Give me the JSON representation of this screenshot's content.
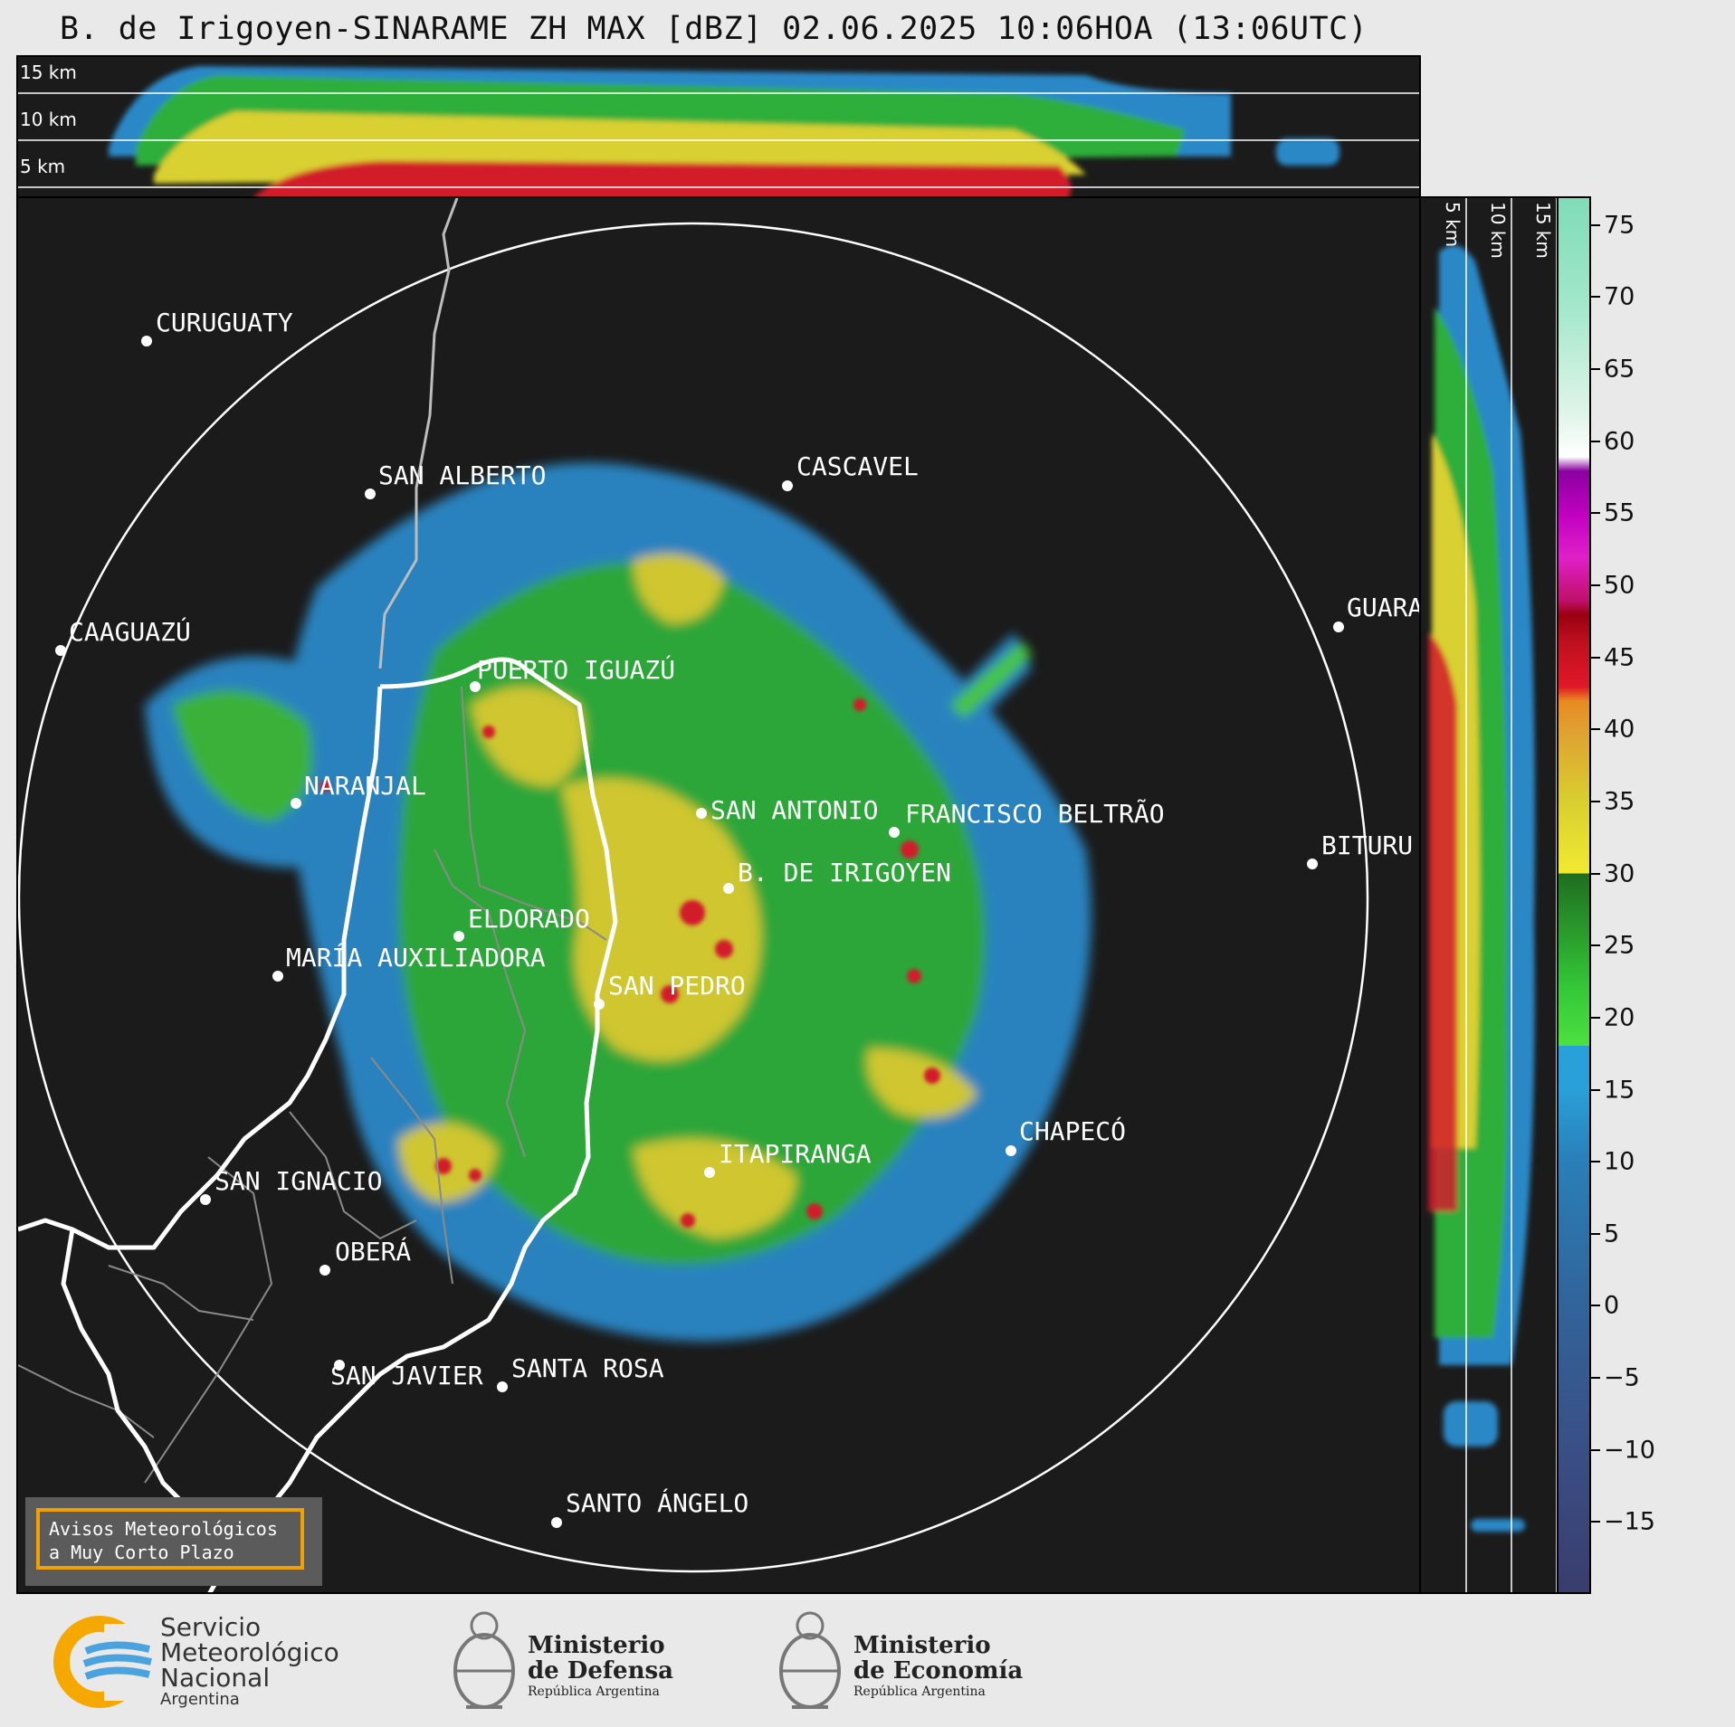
{
  "title": "B. de Irigoyen-SINARAME ZH MAX [dBZ] 02.06.2025 10:06HOA (13:06UTC)",
  "top_panel": {
    "km_labels": [
      "15 km",
      "10 km",
      "5 km"
    ]
  },
  "side_panel": {
    "km_labels": [
      "5 km",
      "10 km",
      "15 km"
    ]
  },
  "colorbar": {
    "ticks": [
      "75",
      "70",
      "65",
      "60",
      "55",
      "50",
      "45",
      "40",
      "35",
      "30",
      "25",
      "20",
      "15",
      "10",
      "5",
      "0",
      "−5",
      "−10",
      "−15"
    ],
    "min": -20,
    "max": 77
  },
  "cities": [
    {
      "name": "CURUGUATY"
    },
    {
      "name": "SAN ALBERTO"
    },
    {
      "name": "CASCAVEL"
    },
    {
      "name": "CAAGUAZÚ"
    },
    {
      "name": "GUARA"
    },
    {
      "name": "PUERTO IGUAZÚ"
    },
    {
      "name": "NARANJAL"
    },
    {
      "name": "SAN ANTONIO"
    },
    {
      "name": "FRANCISCO BELTRÃO"
    },
    {
      "name": "BITURU"
    },
    {
      "name": "B. DE IRIGOYEN"
    },
    {
      "name": "ELDORADO"
    },
    {
      "name": "MARÍA AUXILIADORA"
    },
    {
      "name": "SAN PEDRO"
    },
    {
      "name": "CHAPECÓ"
    },
    {
      "name": "ITAPIRANGA"
    },
    {
      "name": "SAN IGNACIO"
    },
    {
      "name": "OBERÁ"
    },
    {
      "name": "SAN JAVIER"
    },
    {
      "name": "SANTA ROSA"
    },
    {
      "name": "SANTO ÁNGELO"
    }
  ],
  "notice": {
    "line1": "Avisos Meteorológicos",
    "line2": "a Muy Corto Plazo"
  },
  "logos": {
    "smn": {
      "line1": "Servicio",
      "line2": "Meteorológico",
      "line3": "Nacional",
      "line4": "Argentina"
    },
    "defensa": {
      "line1": "Ministerio",
      "line2": "de Defensa",
      "line3": "República Argentina"
    },
    "economia": {
      "line1": "Ministerio",
      "line2": "de Economía",
      "line3": "República Argentina"
    }
  },
  "colors": {
    "background": "#1b1b1b",
    "notice_border": "#f0a000",
    "smn_orange": "#f5a800",
    "smn_blue": "#4aa3df"
  }
}
